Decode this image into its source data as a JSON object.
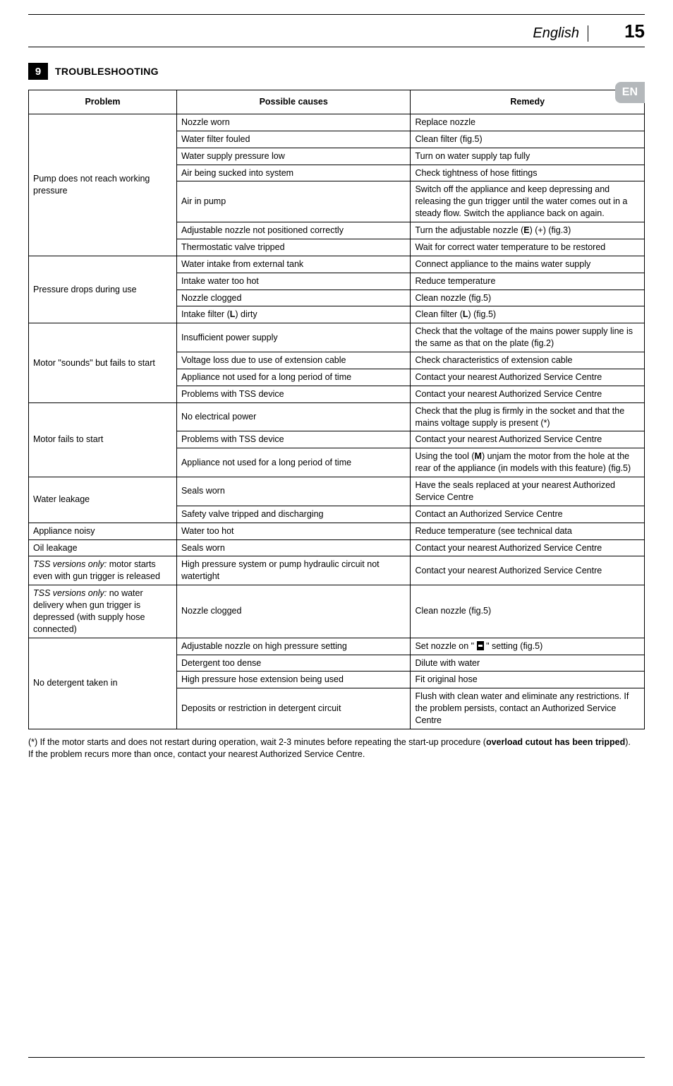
{
  "header": {
    "language": "English",
    "page": "15",
    "badge": "EN"
  },
  "section": {
    "number": "9",
    "title": "TROUBLESHOOTING"
  },
  "table": {
    "headers": [
      "Problem",
      "Possible causes",
      "Remedy"
    ],
    "groups": [
      {
        "problem": "Pump does not reach working pressure",
        "rows": [
          {
            "cause": "Nozzle worn",
            "remedy": "Replace nozzle"
          },
          {
            "cause": "Water filter fouled",
            "remedy": "Clean filter (fig.5)"
          },
          {
            "cause": "Water supply pressure low",
            "remedy": "Turn on water supply tap fully"
          },
          {
            "cause": "Air being sucked into system",
            "remedy": "Check tightness of hose fittings"
          },
          {
            "cause": "Air in pump",
            "remedy": "Switch off the appliance and keep depressing and releasing the gun trigger until the water comes out in a steady flow. Switch the appliance back on again."
          },
          {
            "cause": "Adjustable nozzle not positioned correctly",
            "remedy": "Turn the adjustable nozzle (E) (+) (fig.3)",
            "bold_remedy_letter": "E"
          },
          {
            "cause": "Thermostatic valve tripped",
            "remedy": "Wait for correct water temperature to be restored"
          }
        ]
      },
      {
        "problem": "Pressure drops during use",
        "rows": [
          {
            "cause": "Water intake from external tank",
            "remedy": "Connect appliance to the mains water supply"
          },
          {
            "cause": "Intake water too hot",
            "remedy": "Reduce temperature"
          },
          {
            "cause": "Nozzle clogged",
            "remedy": "Clean nozzle (fig.5)"
          },
          {
            "cause": "Intake filter (L) dirty",
            "remedy": "Clean filter (L) (fig.5)",
            "bold_cause_letter": "L",
            "bold_remedy_letter": "L"
          }
        ]
      },
      {
        "problem": "Motor \"sounds\" but fails to start",
        "rows": [
          {
            "cause": "Insufficient power supply",
            "remedy": "Check that the voltage of the mains power supply line is the same as that on the plate (fig.2)"
          },
          {
            "cause": "Voltage loss due to use of extension cable",
            "remedy": "Check characteristics of extension cable"
          },
          {
            "cause": "Appliance not used for a long period of time",
            "remedy": "Contact your nearest Authorized Service Centre"
          },
          {
            "cause": "Problems with TSS device",
            "remedy": "Contact your nearest Authorized Service Centre"
          }
        ]
      },
      {
        "problem": "Motor fails to start",
        "rows": [
          {
            "cause": "No electrical power",
            "remedy": "Check that the plug is firmly in the socket and that the mains voltage supply is present (*)"
          },
          {
            "cause": "Problems with TSS device",
            "remedy": "Contact your nearest Authorized Service Centre"
          },
          {
            "cause": "Appliance not used for a long period of time",
            "remedy": "Using the tool (M) unjam the motor from the hole at the rear of the appliance (in models with this feature) (fig.5)",
            "bold_remedy_letter": "M"
          }
        ]
      },
      {
        "problem": "Water leakage",
        "rows": [
          {
            "cause": "Seals worn",
            "remedy": "Have the seals replaced at your nearest Authorized Service Centre"
          },
          {
            "cause": "Safety valve tripped and discharging",
            "remedy": "Contact an Authorized Service Centre"
          }
        ]
      },
      {
        "problem": "Appliance noisy",
        "rows": [
          {
            "cause": "Water too hot",
            "remedy": "Reduce temperature (see technical data"
          }
        ]
      },
      {
        "problem": "Oil leakage",
        "rows": [
          {
            "cause": "Seals worn",
            "remedy": "Contact your nearest Authorized Service Centre"
          }
        ]
      },
      {
        "problem_html": "<i>TSS versions only:</i> motor starts even with gun trigger is released",
        "rows": [
          {
            "cause": "High pressure system or pump hydraulic circuit not watertight",
            "remedy": "Contact your nearest Authorized Service Centre"
          }
        ]
      },
      {
        "problem_html": "<i>TSS versions only:</i> no water delivery when gun trigger is depressed (with supply hose connected)",
        "rows": [
          {
            "cause": "Nozzle clogged",
            "remedy": "Clean nozzle (fig.5)"
          }
        ]
      },
      {
        "problem": "No detergent taken in",
        "rows": [
          {
            "cause": "Adjustable nozzle on high pressure setting",
            "remedy_html": "Set nozzle on \" <span class=\"black-sq\"></span> \" setting (fig.5)"
          },
          {
            "cause": "Detergent too dense",
            "remedy": "Dilute with water"
          },
          {
            "cause": "High pressure hose extension being used",
            "remedy": "Fit original hose"
          },
          {
            "cause": "Deposits or restriction in detergent circuit",
            "remedy": "Flush with clean water and eliminate any restrictions. If the problem persists, contact an Authorized Service Centre"
          }
        ]
      }
    ]
  },
  "footnote": {
    "text_pre": "(*) If the motor starts and does not restart during operation, wait 2-3 minutes before repeating the start-up procedure (",
    "bold": "overload cutout has been tripped",
    "text_post": ").\nIf the problem recurs more than once, contact your nearest Authorized Service Centre."
  },
  "colors": {
    "text": "#000000",
    "background": "#ffffff",
    "badge_bg": "#b4b8bb",
    "badge_fg": "#ffffff"
  }
}
